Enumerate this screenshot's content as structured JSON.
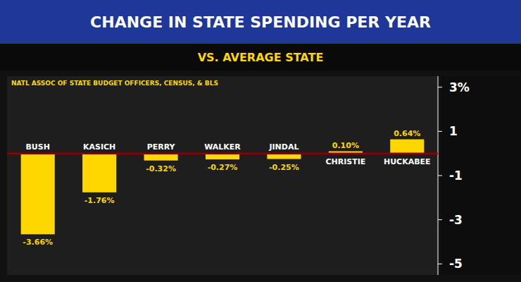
{
  "chart_data": {
    "type": "bar",
    "title": "CHANGE IN STATE SPENDING PER YEAR",
    "subtitle": "VS. AVERAGE STATE",
    "source": "NATL ASSOC OF STATE BUDGET OFFICERS, CENSUS, & BLS",
    "categories": [
      "BUSH",
      "KASICH",
      "PERRY",
      "WALKER",
      "JINDAL",
      "CHRISTIE",
      "HUCKABEE"
    ],
    "values": [
      -3.66,
      -1.76,
      -0.32,
      -0.27,
      -0.25,
      0.1,
      0.64
    ],
    "value_labels": [
      "-3.66%",
      "-1.76%",
      "-0.32%",
      "-0.27%",
      "-0.25%",
      "0.10%",
      "0.64%"
    ],
    "data_labels": true,
    "color": "#FFD700",
    "ylim": [
      -5.5,
      3.5
    ],
    "yticks": [
      -5,
      -3,
      -1,
      1,
      {
        "value": 3,
        "label": "3%"
      }
    ],
    "grid": false
  }
}
